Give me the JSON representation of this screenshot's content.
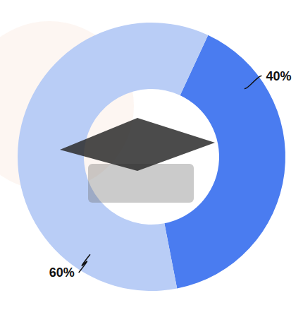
{
  "chart_data": {
    "type": "donut",
    "values": [
      40,
      60
    ],
    "value_labels": [
      "40%",
      "60%"
    ],
    "colors": [
      "#4a7cf0",
      "#b9cdf6"
    ],
    "data_labels": true
  }
}
